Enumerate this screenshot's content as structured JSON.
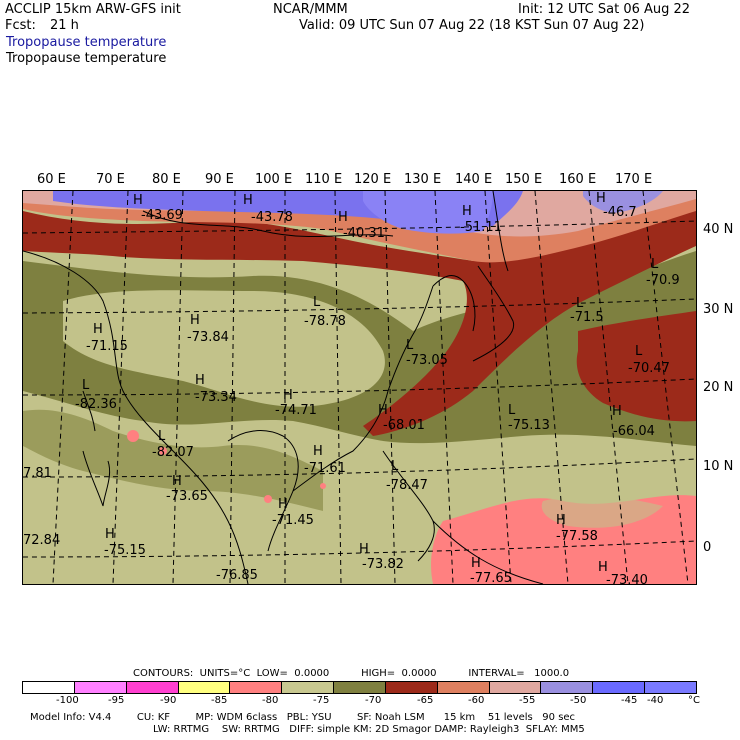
{
  "header": {
    "model": "ACCLIP 15km ARW-GFS init",
    "fcst_label": "Fcst:",
    "fcst_value": "21 h",
    "org": "NCAR/MMM",
    "init": "Init: 12 UTC Sat 06 Aug 22",
    "valid": "Valid: 09 UTC Sun 07 Aug 22 (18 KST Sun 07 Aug 22)",
    "field_line1": "Tropopause temperature",
    "field_line2": "Tropopause temperature"
  },
  "map": {
    "lon_labels": [
      "60 E",
      "70 E",
      "80 E",
      "90 E",
      "100 E",
      "110 E",
      "120 E",
      "130 E",
      "140 E",
      "150 E",
      "160 E",
      "170 E"
    ],
    "lat_labels": [
      "40 N",
      "30 N",
      "20 N",
      "10 N",
      "0"
    ],
    "extrema": [
      {
        "kind": "H",
        "value": "-43.69"
      },
      {
        "kind": "H",
        "value": "-43.78"
      },
      {
        "kind": "H",
        "value": "-40.31"
      },
      {
        "kind": "H",
        "value": "-51.11"
      },
      {
        "kind": "H",
        "value": "-46.7"
      },
      {
        "kind": "L",
        "value": "-70.9"
      },
      {
        "kind": "H",
        "value": "-71.15"
      },
      {
        "kind": "H",
        "value": "-73.84"
      },
      {
        "kind": "L",
        "value": "-78.78"
      },
      {
        "kind": "L",
        "value": "-71.5"
      },
      {
        "kind": "L",
        "value": "-73.05"
      },
      {
        "kind": "L",
        "value": "-70.47"
      },
      {
        "kind": "L",
        "value": "-82.36"
      },
      {
        "kind": "H",
        "value": "-73.34"
      },
      {
        "kind": "H",
        "value": "-74.71"
      },
      {
        "kind": "H",
        "value": "-68.01"
      },
      {
        "kind": "L",
        "value": "-75.13"
      },
      {
        "kind": "H",
        "value": "-66.04"
      },
      {
        "kind": "L",
        "value": "-82.07"
      },
      {
        "kind": "H",
        "value": "-71.61"
      },
      {
        "kind": "L",
        "value": "-78.47"
      },
      {
        "kind": "",
        "value": "7.81"
      },
      {
        "kind": "H",
        "value": "-73.65"
      },
      {
        "kind": "H",
        "value": "-71.45"
      },
      {
        "kind": "H",
        "value": "-77.58"
      },
      {
        "kind": "",
        "value": "72.84"
      },
      {
        "kind": "H",
        "value": "-75.15"
      },
      {
        "kind": "H",
        "value": "-73.82"
      },
      {
        "kind": "H",
        "value": "-77.65"
      },
      {
        "kind": "",
        "value": "-76.85"
      },
      {
        "kind": "H",
        "value": "-73.40"
      }
    ]
  },
  "legend": {
    "contours_line": "CONTOURS:  UNITS=°C  LOW=  0.0000          HIGH=  0.0000          INTERVAL=   1000.0",
    "ticks": [
      "-100",
      "-95",
      "-90",
      "-85",
      "-80",
      "-75",
      "-70",
      "-65",
      "-60",
      "-55",
      "-50",
      "-45",
      "-40",
      "°C"
    ],
    "colors": [
      "#ffffff",
      "#ff80ff",
      "#ff40d0",
      "#ffff80",
      "#ff8080",
      "#c8c890",
      "#7f8040",
      "#9c2a1a",
      "#de8060",
      "#e0a8a0",
      "#9a90e0",
      "#6a6aff",
      "#7a7aff"
    ]
  },
  "footer": {
    "line1": "Model Info: V4.4        CU: KF        MP: WDM 6class   PBL: YSU        SF: Noah LSM      15 km    51 levels   90 sec",
    "line2": "LW: RRTMG    SW: RRTMG   DIFF: simple KM: 2D Smagor DAMP: Rayleigh3  SFLAY: MM5"
  }
}
